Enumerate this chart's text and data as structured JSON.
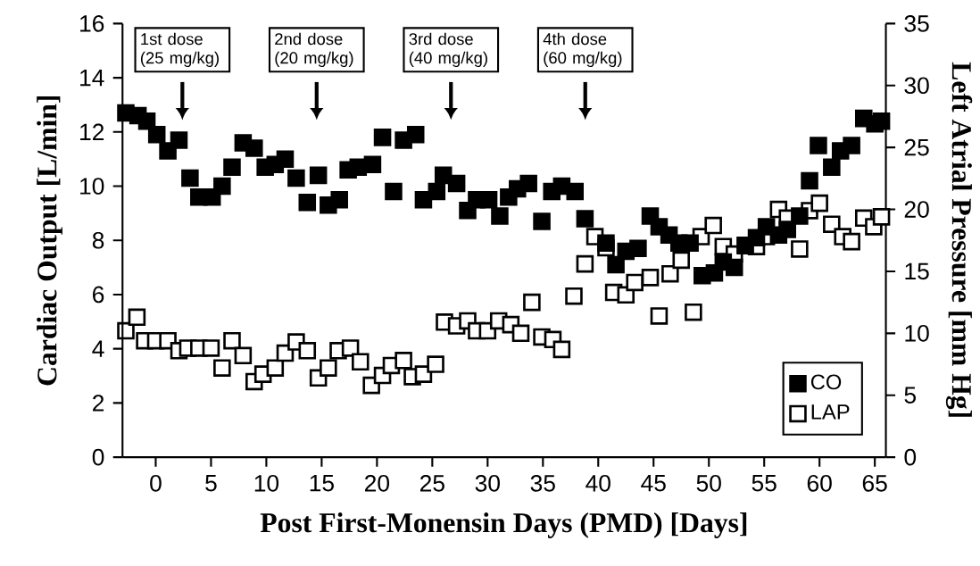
{
  "chart_data": {
    "type": "scatter",
    "xlabel": "Post First-Monensin Days (PMD) [Days]",
    "ylabel": "Cardiac Output [L/min]",
    "y2label": "Left Atrial Pressure [mm Hg]",
    "xlim": [
      -3,
      66
    ],
    "xticks": [
      0,
      5,
      10,
      15,
      20,
      25,
      30,
      35,
      40,
      45,
      50,
      55,
      60,
      65
    ],
    "ylim": [
      0,
      16
    ],
    "yticks": [
      0,
      2,
      4,
      6,
      8,
      10,
      12,
      14,
      16
    ],
    "y2lim": [
      0,
      35
    ],
    "y2ticks": [
      0,
      5,
      10,
      15,
      20,
      25,
      30,
      35
    ],
    "marker": "square",
    "legend": "bottom right",
    "grid": false,
    "annotations": [
      "1st dose (25 mg/kg)",
      "2nd dose (20 mg/kg)",
      "3rd dose (40 mg/kg)",
      "4th dose (60 mg/kg)"
    ],
    "series": [
      {
        "name": "CO",
        "color": "#000000",
        "x": [
          -2.7,
          -1.6,
          -0.8,
          0.1,
          1.1,
          2.1,
          3.1,
          3.9,
          5.1,
          6.0,
          6.9,
          7.9,
          8.9,
          9.9,
          10.8,
          11.7,
          12.7,
          13.7,
          14.7,
          15.6,
          16.6,
          17.4,
          18.3,
          19.6,
          20.5,
          21.5,
          22.4,
          23.5,
          24.2,
          25.4,
          26.0,
          27.2,
          28.2,
          29.0,
          30.1,
          31.1,
          31.9,
          32.7,
          33.7,
          34.9,
          35.8,
          36.7,
          37.9,
          38.8,
          40.7,
          41.6,
          42.5,
          43.6,
          44.7,
          45.5,
          46.4,
          47.3,
          48.3,
          49.4,
          50.5,
          51.3,
          52.3,
          53.3,
          54.3,
          55.2,
          56.3,
          57.1,
          58.2,
          59.1,
          59.9,
          61.1,
          61.9,
          62.9,
          64.0,
          65.0,
          65.6
        ],
        "values": [
          12.7,
          12.6,
          12.4,
          11.9,
          11.3,
          11.7,
          10.3,
          9.6,
          9.6,
          10.0,
          10.7,
          11.6,
          11.4,
          10.7,
          10.8,
          11.0,
          10.3,
          9.4,
          10.4,
          9.3,
          9.5,
          10.6,
          10.7,
          10.8,
          11.8,
          9.8,
          11.7,
          11.9,
          9.5,
          9.8,
          10.4,
          10.1,
          9.1,
          9.5,
          9.5,
          8.9,
          9.6,
          9.9,
          10.1,
          8.7,
          9.8,
          10.0,
          9.8,
          8.8,
          7.9,
          7.1,
          7.6,
          7.7,
          8.9,
          8.5,
          8.2,
          7.9,
          7.9,
          6.7,
          6.8,
          7.2,
          7.0,
          7.8,
          8.1,
          8.5,
          8.2,
          8.4,
          8.9,
          10.2,
          11.5,
          10.7,
          11.3,
          11.5,
          12.5,
          12.3,
          12.4
        ]
      },
      {
        "name": "LAP",
        "color": "#ffffff",
        "axis": "y2",
        "x": [
          -2.7,
          -1.7,
          -1.0,
          0.0,
          1.1,
          2.1,
          2.9,
          3.9,
          5.0,
          6.0,
          6.9,
          7.9,
          8.9,
          9.7,
          10.8,
          11.7,
          12.7,
          13.7,
          14.7,
          15.6,
          16.5,
          17.6,
          18.5,
          19.5,
          20.5,
          21.3,
          22.4,
          23.2,
          24.2,
          25.3,
          26.1,
          27.2,
          28.2,
          29.0,
          30.0,
          31.0,
          32.1,
          33.0,
          34.0,
          34.9,
          35.9,
          36.7,
          37.8,
          38.8,
          39.7,
          40.7,
          41.4,
          42.5,
          43.3,
          44.7,
          45.5,
          46.5,
          47.5,
          48.6,
          49.3,
          50.4,
          51.3,
          52.3,
          53.3,
          54.3,
          55.2,
          56.3,
          57.1,
          58.2,
          59.1,
          60.0,
          61.1,
          62.1,
          62.9,
          64.0,
          64.9,
          65.6
        ],
        "values": [
          10.2,
          11.3,
          9.4,
          9.4,
          9.4,
          8.6,
          8.8,
          8.8,
          8.8,
          7.2,
          9.4,
          8.2,
          6.1,
          6.7,
          7.2,
          8.4,
          9.3,
          8.6,
          6.4,
          7.2,
          8.6,
          8.8,
          7.7,
          5.8,
          6.6,
          7.4,
          7.8,
          6.5,
          6.7,
          7.5,
          10.9,
          10.6,
          11.0,
          10.2,
          10.2,
          11.0,
          10.7,
          10.0,
          12.5,
          9.7,
          9.5,
          8.7,
          13.0,
          15.6,
          17.8,
          16.9,
          13.3,
          13.1,
          14.1,
          14.5,
          11.4,
          14.8,
          15.9,
          11.7,
          17.8,
          18.7,
          17.0,
          16.4,
          17.1,
          17.0,
          17.8,
          20.0,
          19.3,
          16.8,
          19.9,
          20.5,
          18.8,
          17.8,
          17.4,
          19.3,
          18.6,
          19.4
        ]
      }
    ]
  }
}
